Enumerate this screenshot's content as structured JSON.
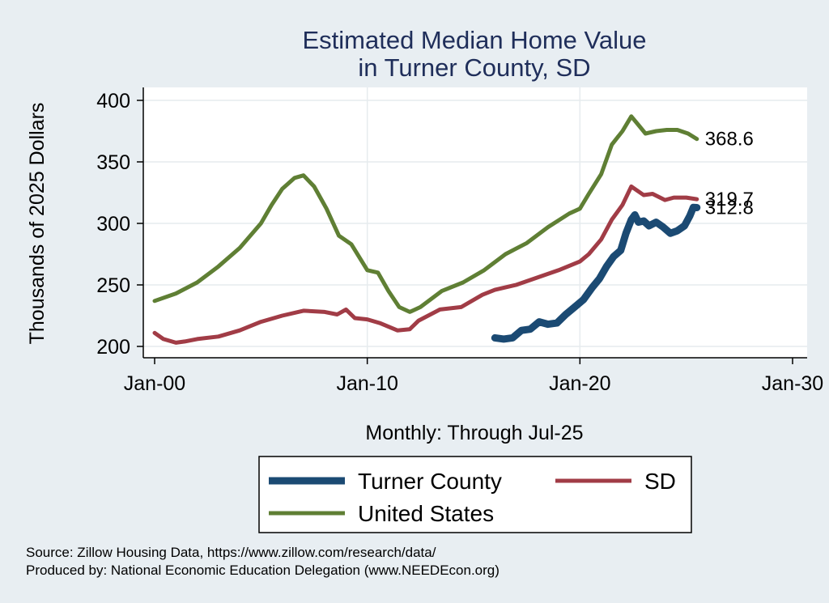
{
  "chart_data": {
    "type": "line",
    "title": [
      "Estimated Median Home Value",
      "in Turner County, SD"
    ],
    "ylabel": "Thousands of 2025 Dollars",
    "xlabel": "Monthly: Through Jul-25",
    "xlim": [
      "2000-01",
      "2030-01"
    ],
    "ylim": [
      200,
      400
    ],
    "x_ticks": [
      "Jan-00",
      "Jan-10",
      "Jan-20",
      "Jan-30"
    ],
    "y_ticks": [
      200,
      250,
      300,
      350,
      400
    ],
    "grid": true,
    "legend_position": "bottom",
    "series": [
      {
        "name": "Turner County",
        "color": "#1b4a73",
        "end_label": "312.8",
        "points": [
          [
            "2016-01",
            207
          ],
          [
            "2016-06",
            206
          ],
          [
            "2016-11",
            207
          ],
          [
            "2017-04",
            213
          ],
          [
            "2017-09",
            214
          ],
          [
            "2018-02",
            220
          ],
          [
            "2018-07",
            218
          ],
          [
            "2018-12",
            219
          ],
          [
            "2019-05",
            226
          ],
          [
            "2019-10",
            232
          ],
          [
            "2020-03",
            238
          ],
          [
            "2020-08",
            248
          ],
          [
            "2020-12",
            255
          ],
          [
            "2021-04",
            265
          ],
          [
            "2021-08",
            273
          ],
          [
            "2021-12",
            278
          ],
          [
            "2022-03",
            292
          ],
          [
            "2022-06",
            303
          ],
          [
            "2022-08",
            307
          ],
          [
            "2022-10",
            301
          ],
          [
            "2023-01",
            302
          ],
          [
            "2023-04",
            298
          ],
          [
            "2023-08",
            301
          ],
          [
            "2023-12",
            297
          ],
          [
            "2024-04",
            292
          ],
          [
            "2024-08",
            294
          ],
          [
            "2024-12",
            298
          ],
          [
            "2025-03",
            306
          ],
          [
            "2025-05",
            313
          ],
          [
            "2025-07",
            312.8
          ]
        ]
      },
      {
        "name": "SD",
        "color": "#a13c46",
        "end_label": "319.7",
        "points": [
          [
            "2000-01",
            211
          ],
          [
            "2000-06",
            206
          ],
          [
            "2001-01",
            203
          ],
          [
            "2001-06",
            204
          ],
          [
            "2002-01",
            206
          ],
          [
            "2003-01",
            208
          ],
          [
            "2004-01",
            213
          ],
          [
            "2005-01",
            220
          ],
          [
            "2006-01",
            225
          ],
          [
            "2007-01",
            229
          ],
          [
            "2008-01",
            228
          ],
          [
            "2008-08",
            226
          ],
          [
            "2009-01",
            230
          ],
          [
            "2009-06",
            223
          ],
          [
            "2010-01",
            222
          ],
          [
            "2010-08",
            219
          ],
          [
            "2011-06",
            213
          ],
          [
            "2012-01",
            214
          ],
          [
            "2012-06",
            221
          ],
          [
            "2013-06",
            230
          ],
          [
            "2014-06",
            232
          ],
          [
            "2015-06",
            242
          ],
          [
            "2016-01",
            246
          ],
          [
            "2017-01",
            250
          ],
          [
            "2018-01",
            256
          ],
          [
            "2019-01",
            262
          ],
          [
            "2020-01",
            269
          ],
          [
            "2020-06",
            275
          ],
          [
            "2021-01",
            287
          ],
          [
            "2021-07",
            303
          ],
          [
            "2022-01",
            315
          ],
          [
            "2022-06",
            330
          ],
          [
            "2023-01",
            323
          ],
          [
            "2023-06",
            324
          ],
          [
            "2024-01",
            319
          ],
          [
            "2024-06",
            321
          ],
          [
            "2025-01",
            321
          ],
          [
            "2025-07",
            319.7
          ]
        ]
      },
      {
        "name": "United States",
        "color": "#5f7f34",
        "end_label": "368.6",
        "points": [
          [
            "2000-01",
            237
          ],
          [
            "2001-01",
            243
          ],
          [
            "2002-01",
            252
          ],
          [
            "2003-01",
            265
          ],
          [
            "2004-01",
            280
          ],
          [
            "2005-01",
            300
          ],
          [
            "2005-07",
            315
          ],
          [
            "2006-01",
            328
          ],
          [
            "2006-08",
            337
          ],
          [
            "2007-01",
            339
          ],
          [
            "2007-07",
            330
          ],
          [
            "2008-02",
            312
          ],
          [
            "2008-09",
            290
          ],
          [
            "2009-04",
            283
          ],
          [
            "2010-01",
            262
          ],
          [
            "2010-07",
            260
          ],
          [
            "2011-01",
            245
          ],
          [
            "2011-07",
            232
          ],
          [
            "2012-01",
            228
          ],
          [
            "2012-07",
            232
          ],
          [
            "2013-07",
            245
          ],
          [
            "2014-07",
            252
          ],
          [
            "2015-07",
            262
          ],
          [
            "2016-07",
            275
          ],
          [
            "2017-07",
            284
          ],
          [
            "2018-07",
            297
          ],
          [
            "2019-07",
            308
          ],
          [
            "2020-01",
            312
          ],
          [
            "2020-06",
            324
          ],
          [
            "2021-01",
            340
          ],
          [
            "2021-07",
            364
          ],
          [
            "2022-01",
            375
          ],
          [
            "2022-06",
            387
          ],
          [
            "2022-10",
            380
          ],
          [
            "2023-02",
            373
          ],
          [
            "2023-08",
            375
          ],
          [
            "2024-02",
            376
          ],
          [
            "2024-08",
            376
          ],
          [
            "2025-02",
            373
          ],
          [
            "2025-07",
            368.6
          ]
        ]
      }
    ],
    "legend_order": [
      "Turner County",
      "SD",
      "United States"
    ]
  },
  "source_note": {
    "line1": "Source: Zillow Housing Data, https://www.zillow.com/research/data/",
    "line2": "Produced by: National Economic Education Delegation (www.NEEDEcon.org)"
  }
}
